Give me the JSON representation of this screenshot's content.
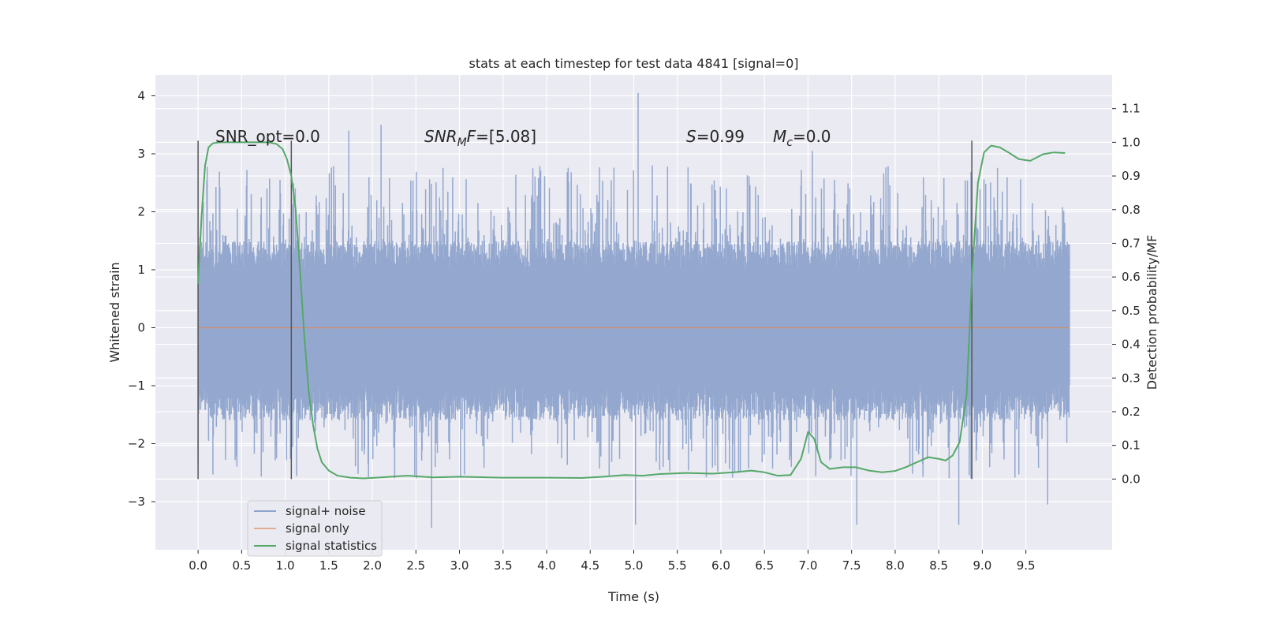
{
  "chart_data": {
    "type": "line",
    "title": "stats at each timestep for test data 4841 [signal=0]",
    "xlabel": "Time (s)",
    "ylabel": "Whitened strain",
    "y2label": "Detection probability/MF",
    "xlim": [
      -0.49,
      10.49
    ],
    "ylim": [
      -3.83,
      4.36
    ],
    "y2lim": [
      -0.21,
      1.2
    ],
    "grid": true,
    "legend_position": "lower-left",
    "x_ticks": [
      0.0,
      0.5,
      1.0,
      1.5,
      2.0,
      2.5,
      3.0,
      3.5,
      4.0,
      4.5,
      5.0,
      5.5,
      6.0,
      6.5,
      7.0,
      7.5,
      8.0,
      8.5,
      9.0,
      9.5
    ],
    "x_tick_labels": [
      "0.0",
      "0.5",
      "1.0",
      "1.5",
      "2.0",
      "2.5",
      "3.0",
      "3.5",
      "4.0",
      "4.5",
      "5.0",
      "5.5",
      "6.0",
      "6.5",
      "7.0",
      "7.5",
      "8.0",
      "8.5",
      "9.0",
      "9.5"
    ],
    "y_ticks": [
      -3,
      -2,
      -1,
      0,
      1,
      2,
      3,
      4
    ],
    "y_tick_labels": [
      "−3",
      "−2",
      "−1",
      "0",
      "1",
      "2",
      "3",
      "4"
    ],
    "y2_ticks": [
      0.0,
      0.1,
      0.2,
      0.3,
      0.4,
      0.5,
      0.6,
      0.7,
      0.8,
      0.9,
      1.0,
      1.1
    ],
    "y2_tick_labels": [
      "0.0",
      "0.1",
      "0.2",
      "0.3",
      "0.4",
      "0.5",
      "0.6",
      "0.7",
      "0.8",
      "0.9",
      "1.0",
      "1.1"
    ],
    "annotations": {
      "snr_opt": "SNR_opt=0.0",
      "snr_mf_label": "SNR",
      "snr_mf_sub": "M",
      "snr_mf_suffix": "F",
      "snr_mf_value": "=[5.08]",
      "s_label": "S",
      "s_value": "=0.99",
      "mc_label": "M",
      "mc_sub": "c",
      "mc_value": "=0.0"
    },
    "vertical_markers": [
      {
        "x": 0.0,
        "y2_range": [
          0.0,
          1.0
        ]
      },
      {
        "x": 1.07,
        "y2_range": [
          0.0,
          1.0
        ]
      },
      {
        "x": 8.88,
        "y2_range": [
          0.0,
          1.0
        ]
      }
    ],
    "legend": [
      {
        "label": "signal+ noise",
        "color": "#8fa4cc"
      },
      {
        "label": "signal only",
        "color": "#dd8452"
      },
      {
        "label": "signal statistics",
        "color": "#55a868"
      }
    ],
    "series": [
      {
        "name": "signal+ noise",
        "axis": "left",
        "color": "#8fa4cc",
        "x_range": [
          0.0,
          10.0
        ],
        "approx_y_range": [
          -3.4,
          4.05
        ],
        "notable_peaks": [
          [
            5.05,
            4.05
          ],
          [
            2.1,
            3.5
          ],
          [
            1.73,
            3.4
          ],
          [
            7.05,
            3.05
          ],
          [
            5.02,
            -3.4
          ],
          [
            7.56,
            -3.4
          ],
          [
            2.68,
            -3.45
          ],
          [
            8.73,
            -3.4
          ],
          [
            9.75,
            -3.05
          ]
        ]
      },
      {
        "name": "signal only",
        "axis": "left",
        "color": "#dd8452",
        "x": [
          0.0,
          10.0
        ],
        "y": [
          0.0,
          0.0
        ]
      },
      {
        "name": "signal statistics",
        "axis": "right",
        "color": "#55a868",
        "x": [
          0.0,
          0.04,
          0.08,
          0.12,
          0.17,
          0.25,
          0.35,
          0.5,
          0.65,
          0.8,
          0.9,
          0.97,
          1.02,
          1.07,
          1.12,
          1.17,
          1.22,
          1.27,
          1.32,
          1.37,
          1.42,
          1.5,
          1.6,
          1.75,
          1.9,
          2.1,
          2.4,
          2.7,
          3.0,
          3.5,
          4.0,
          4.4,
          4.65,
          4.9,
          5.1,
          5.3,
          5.6,
          5.9,
          6.15,
          6.35,
          6.5,
          6.65,
          6.8,
          6.92,
          7.0,
          7.07,
          7.15,
          7.25,
          7.4,
          7.55,
          7.7,
          7.85,
          8.0,
          8.12,
          8.25,
          8.38,
          8.5,
          8.58,
          8.66,
          8.74,
          8.82,
          8.88,
          8.95,
          9.02,
          9.1,
          9.2,
          9.3,
          9.42,
          9.55,
          9.7,
          9.82,
          9.95
        ],
        "y": [
          0.58,
          0.78,
          0.93,
          0.985,
          0.997,
          1.0,
          1.0,
          1.0,
          1.0,
          1.0,
          0.995,
          0.98,
          0.95,
          0.9,
          0.8,
          0.62,
          0.42,
          0.26,
          0.16,
          0.09,
          0.05,
          0.025,
          0.01,
          0.004,
          0.002,
          0.005,
          0.01,
          0.005,
          0.007,
          0.004,
          0.004,
          0.003,
          0.007,
          0.012,
          0.01,
          0.015,
          0.018,
          0.016,
          0.02,
          0.025,
          0.02,
          0.01,
          0.012,
          0.06,
          0.14,
          0.12,
          0.05,
          0.03,
          0.035,
          0.035,
          0.025,
          0.02,
          0.024,
          0.035,
          0.05,
          0.065,
          0.06,
          0.055,
          0.07,
          0.11,
          0.25,
          0.6,
          0.88,
          0.97,
          0.99,
          0.985,
          0.97,
          0.95,
          0.945,
          0.965,
          0.97,
          0.968
        ]
      }
    ]
  }
}
